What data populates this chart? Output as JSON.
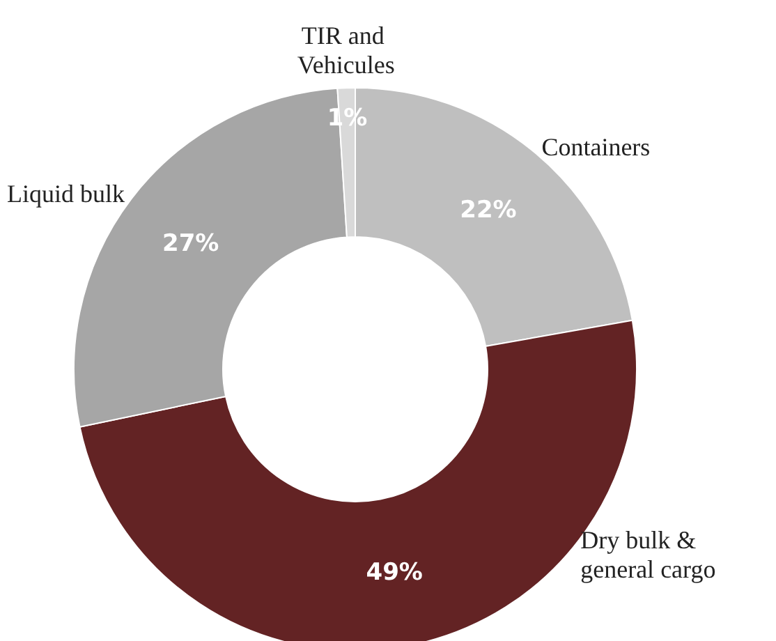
{
  "chart_data": {
    "type": "donut",
    "categories": [
      "Containers",
      "Dry bulk & general cargo",
      "Liquid bulk",
      "TIR and Vehicules"
    ],
    "values": [
      22,
      49,
      27,
      1
    ],
    "colors": [
      "#bfbfbf",
      "#632324",
      "#a6a6a6",
      "#d9d9d9"
    ],
    "value_labels": [
      "22%",
      "49%",
      "27%",
      "1%"
    ],
    "legend": false
  }
}
